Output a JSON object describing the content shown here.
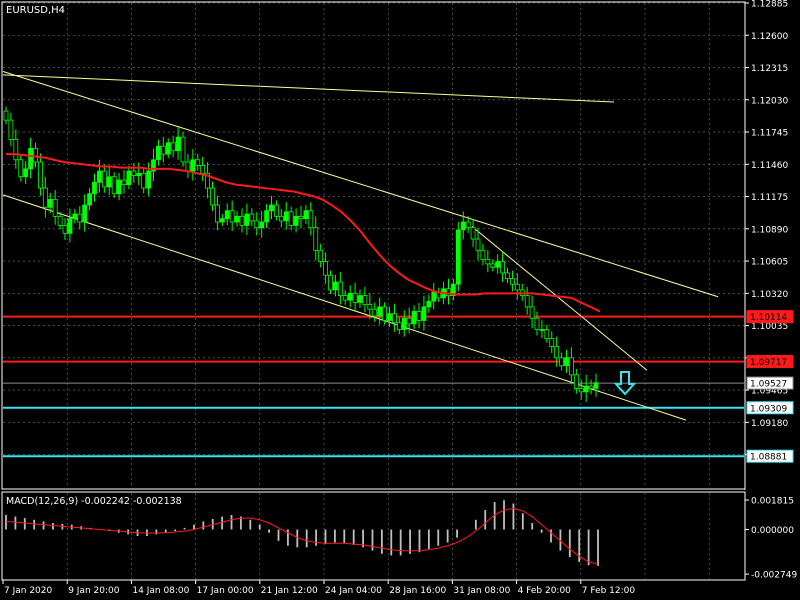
{
  "symbol_label": "EURUSD,H4",
  "indicator_label": "MACD(12,26,9) -0.002242 -0.002138",
  "colors": {
    "background": "#000000",
    "grid": "#6e7a85",
    "axis": "#ffffff",
    "bull_candle": "#00ff00",
    "bear_candle": "#000000",
    "trendline": "#ffff99",
    "ma_line": "#ff1a1a",
    "resistance": "#ff1a1a",
    "support": "#33e6f0",
    "bid_line": "#8c8c8c",
    "signal_arrow": "#33e6f0",
    "macd_histogram": "#c0c0c0",
    "macd_signal": "#ff1a1a",
    "tag_red_fill": "#ff1a1a",
    "tag_cyan_fill": "#ffffff",
    "tag_bid_fill": "#ffffff"
  },
  "price_axis": {
    "ylim": [
      1.086,
      1.12885
    ],
    "ticks": [
      "1.12885",
      "1.12600",
      "1.12315",
      "1.12030",
      "1.11745",
      "1.11460",
      "1.11175",
      "1.10890",
      "1.10605",
      "1.10320",
      "1.10035",
      "1.09750",
      "1.09465",
      "1.09180",
      "1.08895"
    ]
  },
  "price_tags": [
    {
      "name": "level-1",
      "label": "1.10114",
      "price": 1.10114,
      "style": "red"
    },
    {
      "name": "level-2",
      "label": "1.09717",
      "price": 1.09717,
      "style": "red"
    },
    {
      "name": "bid",
      "label": "1.09527",
      "price": 1.09527,
      "style": "bid"
    },
    {
      "name": "level-3",
      "label": "1.09309",
      "price": 1.09309,
      "style": "cyan"
    },
    {
      "name": "level-4",
      "label": "1.08881",
      "price": 1.08881,
      "style": "cyan"
    }
  ],
  "time_axis": {
    "labels": [
      "7 Jan 2020",
      "9 Jan 20:00",
      "14 Jan 08:00",
      "17 Jan 00:00",
      "21 Jan 12:00",
      "24 Jan 04:00",
      "28 Jan 16:00",
      "31 Jan 08:00",
      "4 Feb 20:00",
      "7 Feb 12:00"
    ]
  },
  "macd_axis": {
    "ylim": [
      -0.00305,
      0.00225
    ],
    "ticks": [
      "0.001815",
      "0.000000",
      "-0.002749"
    ]
  },
  "chart_data": {
    "type": "candlestick",
    "timeframe": "H4",
    "closes": [
      1.1185,
      1.1168,
      1.115,
      1.1135,
      1.1142,
      1.116,
      1.1148,
      1.1125,
      1.1108,
      1.1115,
      1.11,
      1.1092,
      1.1085,
      1.1098,
      1.1102,
      1.1095,
      1.111,
      1.112,
      1.113,
      1.114,
      1.1126,
      1.1135,
      1.112,
      1.1132,
      1.1128,
      1.114,
      1.1136,
      1.1138,
      1.1125,
      1.114,
      1.115,
      1.1162,
      1.1155,
      1.1165,
      1.1158,
      1.117,
      1.1148,
      1.114,
      1.115,
      1.1145,
      1.1138,
      1.1125,
      1.111,
      1.1095,
      1.1098,
      1.1105,
      1.1095,
      1.11,
      1.1092,
      1.1102,
      1.1096,
      1.109,
      1.1095,
      1.1105,
      1.111,
      1.11,
      1.1096,
      1.1104,
      1.1092,
      1.11,
      1.1098,
      1.1105,
      1.109,
      1.107,
      1.106,
      1.1048,
      1.1035,
      1.1042,
      1.103,
      1.1026,
      1.1032,
      1.1024,
      1.103,
      1.1022,
      1.1018,
      1.1012,
      1.102,
      1.1008,
      1.1014,
      1.1006,
      1.1,
      1.101,
      1.1005,
      1.1016,
      1.1008,
      1.102,
      1.1025,
      1.1033,
      1.1028,
      1.1036,
      1.103,
      1.104,
      1.1088,
      1.1095,
      1.109,
      1.108,
      1.107,
      1.1062,
      1.1058,
      1.1055,
      1.106,
      1.105,
      1.1045,
      1.104,
      1.1035,
      1.103,
      1.102,
      1.101,
      1.1,
      1.1,
      1.0992,
      1.0985,
      1.0975,
      1.0968,
      1.0975,
      1.096,
      1.0948,
      1.0945,
      1.095,
      1.0948,
      1.0953
    ],
    "moving_average": [
      1.1155,
      1.1155,
      1.1154,
      1.1153,
      1.1152,
      1.115,
      1.1148,
      1.1147,
      1.1146,
      1.1145,
      1.1144,
      1.1144,
      1.1143,
      1.1143,
      1.1143,
      1.1142,
      1.1142,
      1.1142,
      1.1141,
      1.114,
      1.1138,
      1.1136,
      1.1133,
      1.113,
      1.1128,
      1.1127,
      1.1126,
      1.1125,
      1.1124,
      1.1123,
      1.1122,
      1.112,
      1.1118,
      1.1115,
      1.111,
      1.1104,
      1.1096,
      1.1087,
      1.1076,
      1.1066,
      1.1057,
      1.105,
      1.1044,
      1.104,
      1.1036,
      1.1033,
      1.1032,
      1.1031,
      1.1031,
      1.1031,
      1.1032,
      1.1032,
      1.1032,
      1.1032,
      1.1032,
      1.1032,
      1.1031,
      1.103,
      1.1029,
      1.1028,
      1.1024,
      1.102,
      1.1016
    ],
    "trendlines": [
      {
        "name": "channel-top",
        "price_start": 1.1228,
        "price_end": 1.1029
      },
      {
        "name": "channel-bottom",
        "price_start": 1.1119,
        "price_end": 1.092
      },
      {
        "name": "long-term",
        "price_start": 1.1225,
        "price_end": 1.1201
      },
      {
        "name": "short-term",
        "price_start": 1.1091,
        "price_end": 1.0964
      }
    ],
    "signal": "sell",
    "macd": {
      "histogram": [
        0.0009,
        0.0008,
        0.0007,
        0.0006,
        0.0005,
        0.0004,
        0.00035,
        0.0003,
        0.0002,
        0.0001,
        0.0,
        -0.0001,
        -0.0002,
        -0.0003,
        -0.0004,
        -0.0004,
        -0.0003,
        -0.0002,
        -0.0001,
        0.0001,
        0.0003,
        0.0005,
        0.00065,
        0.0008,
        0.0009,
        0.0008,
        0.0006,
        0.0003,
        -0.0002,
        -0.0007,
        -0.001,
        -0.0011,
        -0.0011,
        -0.001,
        -0.0009,
        -0.0008,
        -0.00085,
        -0.00095,
        -0.0011,
        -0.0013,
        -0.0015,
        -0.0016,
        -0.0016,
        -0.0015,
        -0.0014,
        -0.0012,
        -0.001,
        -0.0008,
        -0.0005,
        0.0,
        0.0006,
        0.0012,
        0.0017,
        0.0018,
        0.0016,
        0.001,
        0.0004,
        -0.0002,
        -0.0008,
        -0.0013,
        -0.0017,
        -0.002,
        -0.0022,
        -0.00224
      ],
      "signal_line": [
        0.0005,
        0.00045,
        0.0004,
        0.00035,
        0.0003,
        0.00025,
        0.0002,
        0.00015,
        0.0001,
        5e-05,
        0.0,
        -5e-05,
        -0.0001,
        -0.00015,
        -0.0002,
        -0.00022,
        -0.00022,
        -0.0002,
        -0.00015,
        -0.0001,
        0.0,
        0.00015,
        0.0003,
        0.00045,
        0.0006,
        0.0007,
        0.0007,
        0.0006,
        0.0004,
        0.0001,
        -0.0002,
        -0.0005,
        -0.0007,
        -0.0008,
        -0.00085,
        -0.00085,
        -0.00085,
        -0.0009,
        -0.00095,
        -0.00105,
        -0.00115,
        -0.00125,
        -0.0013,
        -0.00132,
        -0.0013,
        -0.00125,
        -0.00115,
        -0.001,
        -0.0008,
        -0.0005,
        -0.0001,
        0.0004,
        0.0009,
        0.0012,
        0.0013,
        0.00115,
        0.0008,
        0.0003,
        -0.0002,
        -0.0007,
        -0.0012,
        -0.00165,
        -0.002,
        -0.00214
      ]
    }
  }
}
